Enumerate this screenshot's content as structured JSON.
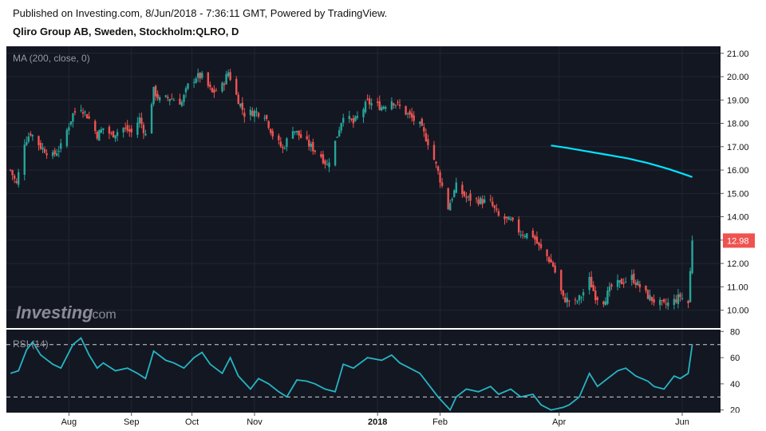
{
  "header": {
    "published": "Published on Investing.com, 8/Jun/2018 - 7:36:11 GMT, Powered by TradingView.",
    "title": "Qliro Group AB, Sweden, Stockholm:QLRO, D"
  },
  "watermark": {
    "brand": "Investing",
    "suffix": ".com"
  },
  "colors": {
    "background": "#131722",
    "up": "#26a69a",
    "down": "#ef5350",
    "ma": "#00e5ff",
    "rsi": "#26b5c3",
    "price_badge": "#ef5350"
  },
  "chart_data": [
    {
      "type": "candlestick",
      "label": "MA (200, close, 0)",
      "y_axis_ticks": [
        "21.00",
        "20.00",
        "19.00",
        "18.00",
        "17.00",
        "16.00",
        "15.00",
        "14.00",
        "13.00",
        "12.00",
        "11.00",
        "10.00"
      ],
      "ylim": [
        9.2,
        21.3
      ],
      "last_price": "12.98",
      "x_axis_ticks": [
        {
          "label": "Aug",
          "date": "2017-08-01"
        },
        {
          "label": "Sep",
          "date": "2017-09-01"
        },
        {
          "label": "Oct",
          "date": "2017-10-01"
        },
        {
          "label": "Nov",
          "date": "2017-11-01"
        },
        {
          "label": "2018",
          "date": "2018-01-01",
          "bold": true
        },
        {
          "label": "Feb",
          "date": "2018-02-01"
        },
        {
          "label": "Apr",
          "date": "2018-04-01"
        },
        {
          "label": "Jun",
          "date": "2018-06-01"
        }
      ],
      "close_series": [
        [
          "2017-07-03",
          16.0
        ],
        [
          "2017-07-06",
          15.4
        ],
        [
          "2017-07-10",
          17.2
        ],
        [
          "2017-07-13",
          17.6
        ],
        [
          "2017-07-18",
          17.0
        ],
        [
          "2017-07-24",
          16.6
        ],
        [
          "2017-07-28",
          17.0
        ],
        [
          "2017-08-03",
          18.4
        ],
        [
          "2017-08-07",
          18.7
        ],
        [
          "2017-08-11",
          18.2
        ],
        [
          "2017-08-15",
          17.5
        ],
        [
          "2017-08-18",
          17.8
        ],
        [
          "2017-08-22",
          17.5
        ],
        [
          "2017-08-28",
          17.8
        ],
        [
          "2017-09-01",
          17.6
        ],
        [
          "2017-09-05",
          18.2
        ],
        [
          "2017-09-08",
          17.5
        ],
        [
          "2017-09-12",
          19.4
        ],
        [
          "2017-09-15",
          19.0
        ],
        [
          "2017-09-20",
          19.1
        ],
        [
          "2017-09-26",
          18.9
        ],
        [
          "2017-09-29",
          19.6
        ],
        [
          "2017-10-03",
          20.0
        ],
        [
          "2017-10-06",
          20.0
        ],
        [
          "2017-10-11",
          19.3
        ],
        [
          "2017-10-16",
          19.6
        ],
        [
          "2017-10-19",
          20.2
        ],
        [
          "2017-10-23",
          19.2
        ],
        [
          "2017-10-27",
          18.4
        ],
        [
          "2017-11-01",
          18.5
        ],
        [
          "2017-11-06",
          18.4
        ],
        [
          "2017-11-10",
          17.5
        ],
        [
          "2017-11-15",
          16.9
        ],
        [
          "2017-11-20",
          17.8
        ],
        [
          "2017-11-24",
          17.4
        ],
        [
          "2017-11-29",
          17.0
        ],
        [
          "2017-12-04",
          16.6
        ],
        [
          "2017-12-07",
          16.2
        ],
        [
          "2017-12-11",
          17.2
        ],
        [
          "2017-12-15",
          18.4
        ],
        [
          "2017-12-20",
          18.0
        ],
        [
          "2017-12-27",
          18.9
        ],
        [
          "2018-01-03",
          18.7
        ],
        [
          "2018-01-08",
          19.0
        ],
        [
          "2018-01-12",
          18.7
        ],
        [
          "2018-01-17",
          18.3
        ],
        [
          "2018-01-22",
          17.9
        ],
        [
          "2018-01-26",
          17.2
        ],
        [
          "2018-01-30",
          16.2
        ],
        [
          "2018-02-05",
          14.4
        ],
        [
          "2018-02-09",
          15.3
        ],
        [
          "2018-02-14",
          14.8
        ],
        [
          "2018-02-20",
          14.7
        ],
        [
          "2018-02-26",
          14.6
        ],
        [
          "2018-03-02",
          14.0
        ],
        [
          "2018-03-08",
          13.8
        ],
        [
          "2018-03-13",
          13.3
        ],
        [
          "2018-03-19",
          13.2
        ],
        [
          "2018-03-22",
          12.7
        ],
        [
          "2018-03-26",
          12.3
        ],
        [
          "2018-03-29",
          11.9
        ],
        [
          "2018-04-03",
          10.5
        ],
        [
          "2018-04-09",
          10.3
        ],
        [
          "2018-04-12",
          10.6
        ],
        [
          "2018-04-16",
          11.3
        ],
        [
          "2018-04-19",
          10.6
        ],
        [
          "2018-04-23",
          10.4
        ],
        [
          "2018-04-27",
          11.0
        ],
        [
          "2018-05-02",
          11.2
        ],
        [
          "2018-05-07",
          11.4
        ],
        [
          "2018-05-11",
          11.0
        ],
        [
          "2018-05-15",
          10.6
        ],
        [
          "2018-05-18",
          10.4
        ],
        [
          "2018-05-23",
          10.2
        ],
        [
          "2018-05-28",
          10.4
        ],
        [
          "2018-05-31",
          10.6
        ],
        [
          "2018-06-04",
          10.3
        ],
        [
          "2018-06-06",
          12.98
        ]
      ],
      "ma_series": [
        [
          "2018-03-28",
          17.05
        ],
        [
          "2018-04-05",
          16.95
        ],
        [
          "2018-04-15",
          16.8
        ],
        [
          "2018-04-25",
          16.65
        ],
        [
          "2018-05-05",
          16.5
        ],
        [
          "2018-05-15",
          16.3
        ],
        [
          "2018-05-25",
          16.05
        ],
        [
          "2018-06-01",
          15.85
        ],
        [
          "2018-06-06",
          15.7
        ]
      ]
    },
    {
      "type": "line",
      "label": "RSI (14)",
      "y_axis_ticks": [
        "80",
        "60",
        "40",
        "20"
      ],
      "ylim": [
        18,
        82
      ],
      "levels": [
        70,
        30
      ],
      "series": [
        [
          "2017-07-03",
          48
        ],
        [
          "2017-07-07",
          50
        ],
        [
          "2017-07-11",
          66
        ],
        [
          "2017-07-14",
          72
        ],
        [
          "2017-07-18",
          62
        ],
        [
          "2017-07-24",
          55
        ],
        [
          "2017-07-28",
          52
        ],
        [
          "2017-08-03",
          70
        ],
        [
          "2017-08-07",
          75
        ],
        [
          "2017-08-11",
          62
        ],
        [
          "2017-08-15",
          52
        ],
        [
          "2017-08-18",
          56
        ],
        [
          "2017-08-24",
          50
        ],
        [
          "2017-08-30",
          52
        ],
        [
          "2017-09-04",
          48
        ],
        [
          "2017-09-08",
          44
        ],
        [
          "2017-09-12",
          65
        ],
        [
          "2017-09-18",
          58
        ],
        [
          "2017-09-22",
          56
        ],
        [
          "2017-09-27",
          52
        ],
        [
          "2017-10-02",
          60
        ],
        [
          "2017-10-06",
          64
        ],
        [
          "2017-10-10",
          55
        ],
        [
          "2017-10-16",
          48
        ],
        [
          "2017-10-20",
          60
        ],
        [
          "2017-10-24",
          46
        ],
        [
          "2017-10-30",
          36
        ],
        [
          "2017-11-03",
          44
        ],
        [
          "2017-11-08",
          40
        ],
        [
          "2017-11-13",
          34
        ],
        [
          "2017-11-17",
          30
        ],
        [
          "2017-11-22",
          43
        ],
        [
          "2017-11-27",
          42
        ],
        [
          "2017-12-01",
          40
        ],
        [
          "2017-12-06",
          36
        ],
        [
          "2017-12-11",
          34
        ],
        [
          "2017-12-15",
          55
        ],
        [
          "2017-12-20",
          52
        ],
        [
          "2017-12-27",
          60
        ],
        [
          "2018-01-03",
          58
        ],
        [
          "2018-01-08",
          62
        ],
        [
          "2018-01-12",
          56
        ],
        [
          "2018-01-17",
          52
        ],
        [
          "2018-01-22",
          48
        ],
        [
          "2018-01-26",
          40
        ],
        [
          "2018-01-31",
          30
        ],
        [
          "2018-02-06",
          20
        ],
        [
          "2018-02-09",
          30
        ],
        [
          "2018-02-14",
          36
        ],
        [
          "2018-02-20",
          34
        ],
        [
          "2018-02-26",
          38
        ],
        [
          "2018-03-02",
          32
        ],
        [
          "2018-03-08",
          36
        ],
        [
          "2018-03-13",
          30
        ],
        [
          "2018-03-19",
          32
        ],
        [
          "2018-03-23",
          24
        ],
        [
          "2018-03-28",
          20
        ],
        [
          "2018-04-03",
          22
        ],
        [
          "2018-04-06",
          24
        ],
        [
          "2018-04-11",
          30
        ],
        [
          "2018-04-16",
          48
        ],
        [
          "2018-04-20",
          38
        ],
        [
          "2018-04-25",
          44
        ],
        [
          "2018-04-30",
          50
        ],
        [
          "2018-05-04",
          52
        ],
        [
          "2018-05-09",
          46
        ],
        [
          "2018-05-15",
          42
        ],
        [
          "2018-05-18",
          38
        ],
        [
          "2018-05-23",
          36
        ],
        [
          "2018-05-28",
          46
        ],
        [
          "2018-05-31",
          44
        ],
        [
          "2018-06-04",
          48
        ],
        [
          "2018-06-06",
          70
        ]
      ]
    }
  ]
}
